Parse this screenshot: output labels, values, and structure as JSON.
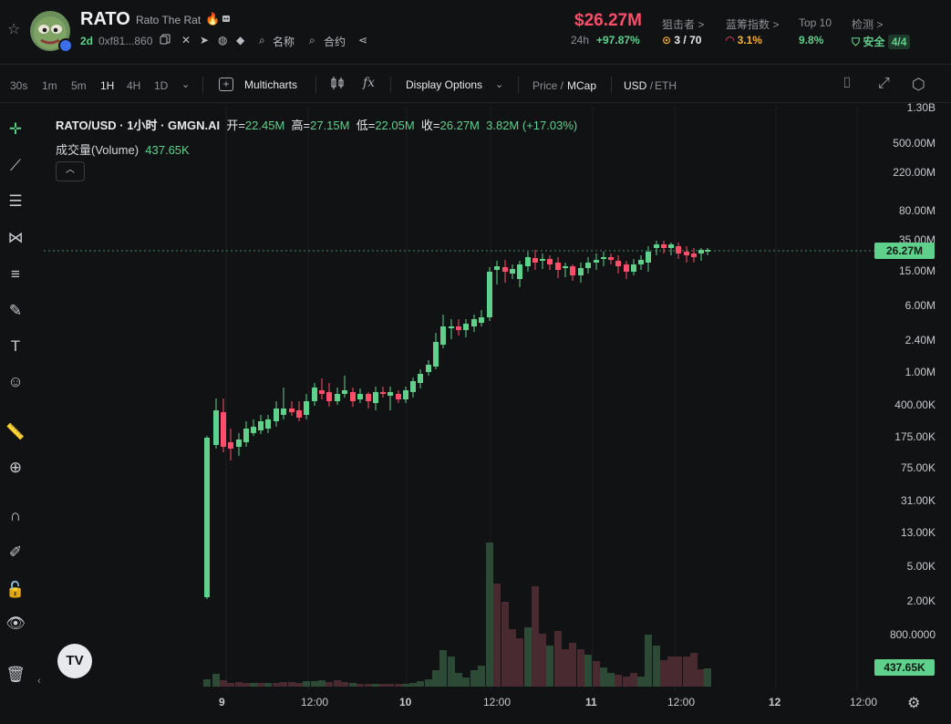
{
  "header": {
    "symbol": "RATO",
    "name": "Rato The Rat",
    "age": "2d",
    "address": "0xf81...860",
    "links": [
      "名称",
      "合约"
    ],
    "price": "$26.27M",
    "change_label": "24h",
    "change_value": "+97.87%",
    "metrics": [
      {
        "label": "狙击者 >",
        "value": "3 / 70",
        "color": "#e8e9ec",
        "icon": "target-icon"
      },
      {
        "label": "蓝筹指数 >",
        "value": "3.1%",
        "color": "#f2b233",
        "icon": "gauge-icon"
      },
      {
        "label": "Top 10",
        "value": "9.8%",
        "color": "#5fd18d",
        "icon": ""
      },
      {
        "label": "检测 >",
        "value": "安全",
        "color": "#5fd18d",
        "icon": "shield-check-icon",
        "badge": "4/4"
      }
    ]
  },
  "toolbar": {
    "timeframes": [
      "30s",
      "1m",
      "5m",
      "1H",
      "4H",
      "1D"
    ],
    "active_timeframe": "1H",
    "multicharts": "Multicharts",
    "display_options": "Display Options",
    "price": "Price",
    "mcap": "MCap",
    "usd": "USD",
    "eth": "ETH"
  },
  "legend": {
    "title": "RATO/USD · 1小时 · GMGN.AI",
    "open_label": "开=",
    "open": "22.45M",
    "high_label": "高=",
    "high": "27.15M",
    "low_label": "低=",
    "low": "22.05M",
    "close_label": "收=",
    "close": "26.27M",
    "change": "3.82M (+17.03%)",
    "volume_label": "成交量(Volume)",
    "volume": "437.65K"
  },
  "chart_data": {
    "type": "candlestick",
    "y_scale": "log",
    "y_ticks": [
      "1.30B",
      "500.00M",
      "220.00M",
      "80.00M",
      "35.00M",
      "15.00M",
      "6.00M",
      "2.40M",
      "1.00M",
      "400.00K",
      "175.00K",
      "75.00K",
      "31.00K",
      "13.00K",
      "5.00K",
      "2.00K",
      "800.0000"
    ],
    "x_ticks": [
      "9",
      "12:00",
      "10",
      "12:00",
      "11",
      "12:00",
      "12",
      "12:00"
    ],
    "last_price_tag": "26.27M",
    "last_volume_tag": "437.65K",
    "colors": {
      "up": "#5fd18d",
      "down": "#ff4d6a"
    }
  }
}
